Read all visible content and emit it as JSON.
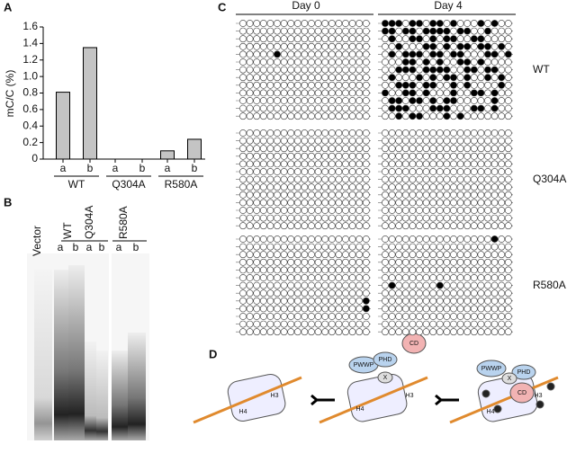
{
  "panels": {
    "a": "A",
    "b": "B",
    "c": "C",
    "d": "D"
  },
  "chart_data": {
    "type": "bar",
    "y_label": "mC/C (%)",
    "groups": [
      "WT",
      "Q304A",
      "R580A"
    ],
    "categories": [
      "a",
      "b",
      "a",
      "b",
      "a",
      "b"
    ],
    "values": [
      0.81,
      1.35,
      0,
      0,
      0.1,
      0.24
    ],
    "color": "#c4c4c4",
    "ylim": [
      0,
      1.6
    ],
    "yticks": [
      0,
      0.2,
      0.4,
      0.6,
      0.8,
      {
        "value": 1,
        "label": "1.0"
      },
      1.2,
      1.4,
      1.6
    ]
  },
  "gel": {
    "lanes": [
      "Vector",
      "WT",
      "Q304A",
      "R580A"
    ],
    "sublanes": [
      "a",
      "b",
      "a",
      "b",
      "a",
      "b"
    ]
  },
  "methylation": {
    "days": [
      "Day 0",
      "Day 4"
    ],
    "rows": [
      {
        "label": "WT",
        "day0": [
          "0000000000000000000",
          "0000000000000000000",
          "0000000000000000000",
          "0000000000000000000",
          "0000010000000000000",
          "0000000000000000000",
          "0000000000000000000",
          "0000000000000000000",
          "0000000000000000000",
          "0000000000000000000",
          "0000000000000000000",
          "0000000000000000000",
          "0000000000000000000"
        ],
        "day4": [
          "1110110110100010100",
          "1101101111011001000",
          "0100110101100110000",
          "0010001101011011010",
          "0101110110110001101",
          "0001101010011010000",
          "0011101111001101100",
          "0100010101101001010",
          "0011101100101000010",
          "1001101000100110100",
          "0110110101100000100",
          "0111000111000110100",
          "0010110001010000000"
        ]
      },
      {
        "label": "Q304A",
        "day0": [
          "0000000000000000000",
          "0000000000000000000",
          "0000000000000000000",
          "0000000000000000000",
          "0000000000000000000",
          "0000000000000000000",
          "0000000000000000000",
          "0000000000000000000",
          "0000000000000000000",
          "0000000000000000000",
          "0000000000000000000",
          "0000000000000000000",
          "0000000000000000000"
        ],
        "day4": [
          "0000000000000000000",
          "0000000000000000000",
          "0000000000000000000",
          "0000000000000000000",
          "0000000000000000000",
          "0000000000000000000",
          "0000000000000000000",
          "0000000000000000000",
          "0000000000000000000",
          "0000000000000000000",
          "0000000000000000000",
          "0000000000000000000",
          "0000000000000000000"
        ]
      },
      {
        "label": "R580A",
        "day0": [
          "0000000000000000000",
          "0000000000000000000",
          "0000000000000000000",
          "0000000000000000000",
          "0000000000000000000",
          "0000000000000000000",
          "0000000000000000000",
          "0000000000000000000",
          "0000000000000000001",
          "0000000000000000001",
          "0000000000000000000",
          "0000000000000000000",
          "0000000000000000000"
        ],
        "day4": [
          "0000000000000000100",
          "0000000000000000000",
          "0000000000000000000",
          "0000000000000000000",
          "0000000000000000000",
          "0000000000000000000",
          "0100000010000000000",
          "0000000000000000000",
          "0000000000000000000",
          "0000000000000000000",
          "0000000000000000000",
          "0000000000000000000",
          "0000000000000000000"
        ]
      }
    ]
  },
  "diagram": {
    "labels": [
      "PWWP",
      "PHD",
      "CD",
      "X",
      "H3",
      "H4"
    ]
  }
}
